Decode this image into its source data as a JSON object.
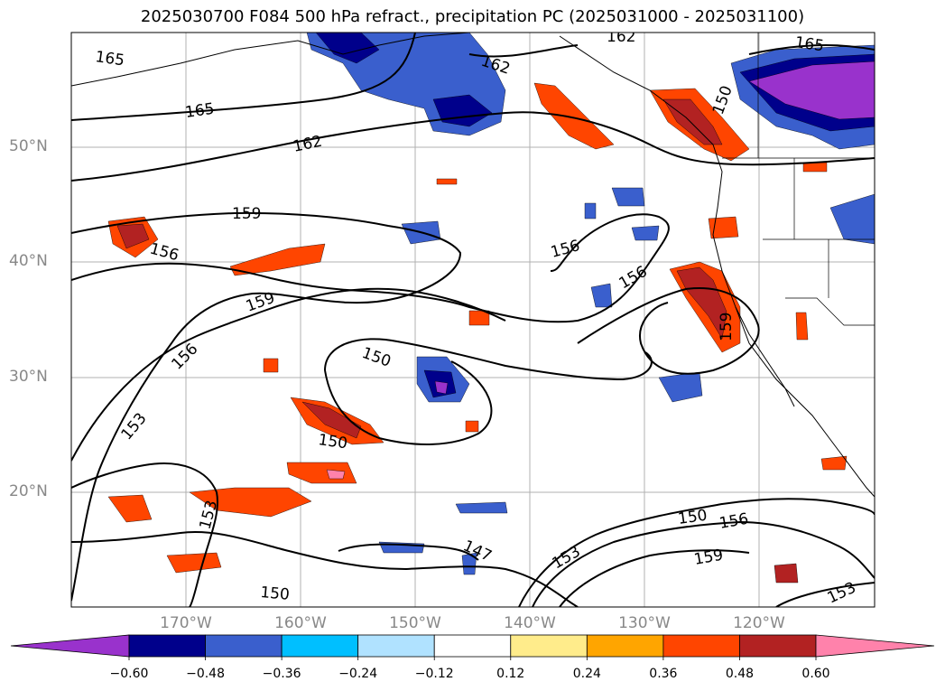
{
  "title": "2025030700 F084 500 hPa refract., precipitation PC (2025031000 - 2025031100)",
  "lat_labels": [
    "50°N",
    "40°N",
    "30°N",
    "20°N"
  ],
  "lon_labels": [
    "170°W",
    "160°W",
    "150°W",
    "140°W",
    "130°W",
    "120°W"
  ],
  "contour_labels": [
    "165",
    "162",
    "165",
    "162",
    "165",
    "162",
    "159",
    "156",
    "159",
    "156",
    "156",
    "156",
    "150",
    "159",
    "153",
    "150",
    "153",
    "150",
    "147",
    "153",
    "150",
    "156",
    "159",
    "153",
    "150"
  ],
  "colorbar": {
    "ticks": [
      "−0.60",
      "−0.48",
      "−0.36",
      "−0.24",
      "−0.12",
      "0.12",
      "0.24",
      "0.36",
      "0.48",
      "0.60"
    ],
    "colors": [
      "#9932cc",
      "#00008b",
      "#3a5fcd",
      "#00bfff",
      "#b0e2ff",
      "#ffffff",
      "#ffec8b",
      "#ffa500",
      "#ff4500",
      "#b22222",
      "#ff82ab"
    ]
  }
}
